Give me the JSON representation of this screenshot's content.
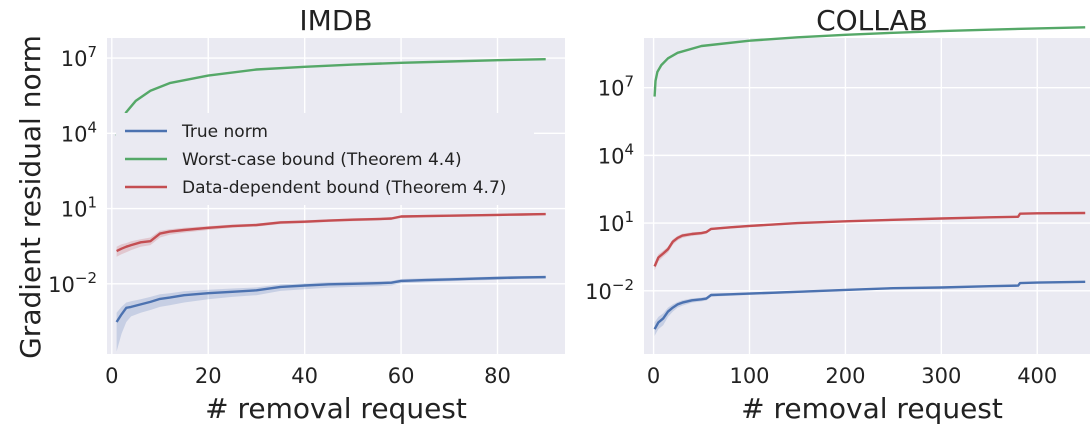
{
  "ylabel": "Gradient residual norm",
  "colors": {
    "true_norm": "#4c72b0",
    "worst_case": "#55a868",
    "data_dependent": "#c44e52",
    "background": "#eaeaf2"
  },
  "legend": {
    "placement": "left-middle of first panel",
    "entries": [
      {
        "label": "True norm",
        "color": "#4c72b0"
      },
      {
        "label": "Worst-case bound (Theorem 4.4)",
        "color": "#55a868"
      },
      {
        "label": "Data-dependent bound (Theorem 4.7)",
        "color": "#c44e52"
      }
    ]
  },
  "chart_data": [
    {
      "type": "line",
      "title": "IMDB",
      "xlabel": "# removal request",
      "ylabel": "Gradient residual norm",
      "yscale": "log",
      "xlim": [
        -1,
        94
      ],
      "ylim_log10": [
        -4.8,
        7.8
      ],
      "xticks": [
        0,
        20,
        40,
        60,
        80
      ],
      "yticks": [
        {
          "value": 0.01,
          "base": "10",
          "exp": "−2"
        },
        {
          "value": 10,
          "base": "10",
          "exp": "1"
        },
        {
          "value": 10000,
          "base": "10",
          "exp": "4"
        },
        {
          "value": 10000000,
          "base": "10",
          "exp": "7"
        }
      ],
      "grid": true,
      "series": [
        {
          "name": "True norm",
          "color": "#4c72b0",
          "x": [
            1,
            2,
            3,
            4,
            6,
            8,
            10,
            12,
            15,
            20,
            25,
            30,
            35,
            40,
            45,
            50,
            55,
            58,
            60,
            65,
            70,
            75,
            80,
            85,
            90
          ],
          "y": [
            0.0003,
            0.0006,
            0.0011,
            0.0012,
            0.0015,
            0.0019,
            0.0025,
            0.0028,
            0.0035,
            0.0042,
            0.0048,
            0.0055,
            0.0075,
            0.0085,
            0.0095,
            0.01,
            0.0105,
            0.011,
            0.013,
            0.014,
            0.015,
            0.016,
            0.017,
            0.018,
            0.0185
          ],
          "band_low": [
            2e-05,
            0.0001,
            0.0003,
            0.0005,
            0.0007,
            0.0009,
            0.0012,
            0.0014,
            0.0018,
            0.0024,
            0.003,
            0.0035,
            0.0052,
            0.006,
            0.007,
            0.0075,
            0.008,
            0.0085,
            0.0105,
            0.0115,
            0.0125,
            0.0135,
            0.0145,
            0.0155,
            0.016
          ],
          "band_high": [
            0.0007,
            0.0012,
            0.0018,
            0.002,
            0.0024,
            0.003,
            0.0038,
            0.0042,
            0.005,
            0.0058,
            0.0065,
            0.0072,
            0.0095,
            0.0105,
            0.0115,
            0.012,
            0.0125,
            0.013,
            0.0155,
            0.0165,
            0.0175,
            0.0185,
            0.0195,
            0.0205,
            0.021
          ]
        },
        {
          "name": "Worst-case bound (Theorem 4.4)",
          "color": "#55a868",
          "x": [
            1,
            2,
            3,
            5,
            8,
            12,
            20,
            30,
            40,
            50,
            60,
            70,
            80,
            90
          ],
          "y": [
            8000,
            30000,
            70000,
            200000,
            500000,
            1000000,
            2000000,
            3500000,
            4500000,
            5500000,
            6500000,
            7300000,
            8200000,
            9000000
          ]
        },
        {
          "name": "Data-dependent bound (Theorem 4.7)",
          "color": "#c44e52",
          "x": [
            1,
            2,
            3,
            4,
            6,
            8,
            10,
            12,
            15,
            20,
            25,
            30,
            35,
            40,
            45,
            50,
            55,
            58,
            60,
            65,
            70,
            75,
            80,
            85,
            90
          ],
          "y": [
            0.2,
            0.25,
            0.3,
            0.35,
            0.45,
            0.5,
            1.0,
            1.2,
            1.4,
            1.7,
            2.0,
            2.2,
            2.8,
            3.0,
            3.3,
            3.6,
            3.8,
            4.0,
            4.8,
            5.0,
            5.2,
            5.4,
            5.6,
            5.8,
            6.0
          ],
          "band_low": [
            0.12,
            0.15,
            0.18,
            0.22,
            0.3,
            0.35,
            0.7,
            0.9,
            1.1,
            1.4,
            1.7,
            1.9,
            2.4,
            2.6,
            2.9,
            3.1,
            3.3,
            3.5,
            4.2,
            4.4,
            4.6,
            4.8,
            5.0,
            5.2,
            5.4
          ],
          "band_high": [
            0.3,
            0.38,
            0.42,
            0.5,
            0.6,
            0.7,
            1.3,
            1.5,
            1.7,
            2.0,
            2.3,
            2.5,
            3.2,
            3.4,
            3.7,
            4.1,
            4.3,
            4.5,
            5.4,
            5.6,
            5.8,
            6.0,
            6.2,
            6.4,
            6.6
          ]
        }
      ]
    },
    {
      "type": "line",
      "title": "COLLAB",
      "xlabel": "# removal request",
      "ylabel": "",
      "yscale": "log",
      "xlim": [
        -10,
        455
      ],
      "ylim_log10": [
        -4.8,
        9.2
      ],
      "xticks": [
        0,
        100,
        200,
        300,
        400
      ],
      "yticks": [
        {
          "value": 0.01,
          "base": "10",
          "exp": "−2"
        },
        {
          "value": 10,
          "base": "10",
          "exp": "1"
        },
        {
          "value": 10000,
          "base": "10",
          "exp": "4"
        },
        {
          "value": 10000000,
          "base": "10",
          "exp": "7"
        }
      ],
      "grid": true,
      "series": [
        {
          "name": "True norm",
          "color": "#4c72b0",
          "x": [
            1,
            5,
            10,
            15,
            20,
            25,
            30,
            40,
            50,
            55,
            60,
            80,
            100,
            150,
            200,
            250,
            300,
            350,
            380,
            382,
            400,
            450
          ],
          "y": [
            0.0002,
            0.0004,
            0.0006,
            0.0012,
            0.0018,
            0.0025,
            0.003,
            0.0038,
            0.0042,
            0.0045,
            0.0065,
            0.007,
            0.0075,
            0.009,
            0.011,
            0.013,
            0.014,
            0.016,
            0.017,
            0.022,
            0.023,
            0.025
          ],
          "band_low": [
            0.0001,
            0.0002,
            0.0003,
            0.0007,
            0.0012,
            0.0018,
            0.0022,
            0.003,
            0.0034,
            0.0037,
            0.0055,
            0.006,
            0.0065,
            0.008,
            0.01,
            0.012,
            0.013,
            0.0148,
            0.0158,
            0.0205,
            0.0215,
            0.0235
          ],
          "band_high": [
            0.0004,
            0.0007,
            0.001,
            0.0018,
            0.0025,
            0.0032,
            0.0038,
            0.0046,
            0.005,
            0.0053,
            0.0075,
            0.008,
            0.0085,
            0.01,
            0.012,
            0.014,
            0.015,
            0.0172,
            0.0182,
            0.0235,
            0.0245,
            0.0265
          ]
        },
        {
          "name": "Worst-case bound (Theorem 4.4)",
          "color": "#55a868",
          "x": [
            1,
            2,
            4,
            8,
            15,
            25,
            50,
            100,
            150,
            200,
            250,
            300,
            350,
            400,
            450
          ],
          "y": [
            4000000,
            20000000,
            50000000,
            100000000,
            200000000,
            350000000,
            700000000,
            1200000000,
            1700000000,
            2200000000,
            2700000000,
            3200000000,
            3700000000,
            4200000000,
            4700000000
          ]
        },
        {
          "name": "Data-dependent bound (Theorem 4.7)",
          "color": "#c44e52",
          "x": [
            1,
            5,
            10,
            15,
            20,
            25,
            30,
            40,
            50,
            55,
            60,
            80,
            100,
            150,
            200,
            250,
            300,
            350,
            380,
            382,
            400,
            450
          ],
          "y": [
            0.12,
            0.3,
            0.45,
            0.7,
            1.5,
            2.2,
            2.8,
            3.3,
            3.6,
            4.0,
            5.5,
            6.5,
            7.5,
            10,
            12,
            14,
            16,
            18,
            19,
            26,
            27,
            28
          ],
          "band_low": [
            0.08,
            0.2,
            0.32,
            0.5,
            1.1,
            1.7,
            2.2,
            2.7,
            3.0,
            3.4,
            4.8,
            5.7,
            6.6,
            9.0,
            11,
            13,
            15,
            17,
            18,
            24,
            25,
            26
          ],
          "band_high": [
            0.18,
            0.42,
            0.6,
            0.9,
            1.9,
            2.7,
            3.4,
            3.9,
            4.2,
            4.6,
            6.2,
            7.3,
            8.4,
            11,
            13,
            15,
            17,
            19,
            20,
            28,
            29,
            30
          ]
        }
      ]
    }
  ]
}
